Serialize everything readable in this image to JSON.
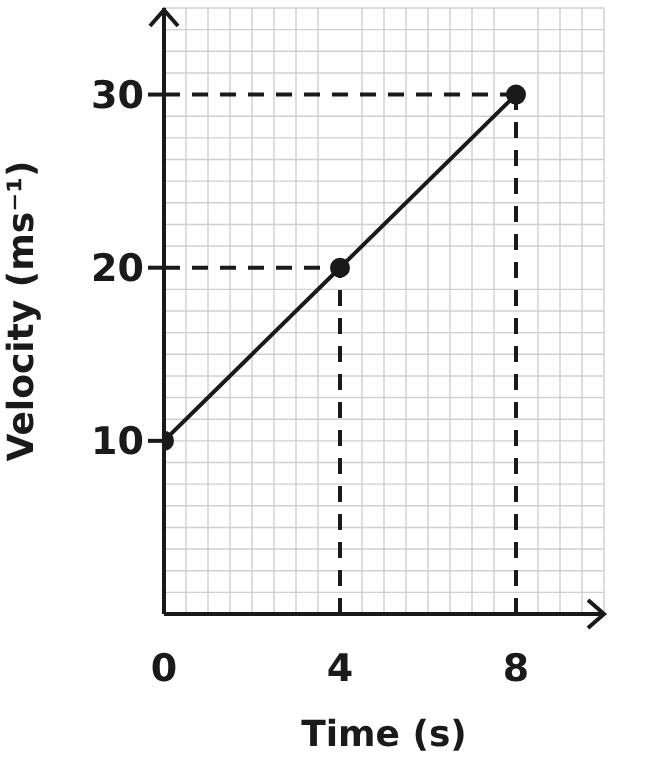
{
  "chart_data": {
    "type": "line",
    "xlabel": "Time (s)",
    "ylabel": "Velocity (ms⁻¹)",
    "x": [
      0,
      4,
      8
    ],
    "series": [
      {
        "color": "#1a1a1a",
        "values": [
          10,
          20,
          30
        ]
      }
    ],
    "xlim": [
      0,
      10
    ],
    "ylim": [
      0,
      35
    ],
    "xticks": [
      0,
      4,
      8
    ],
    "yticks": [
      10,
      20,
      30
    ],
    "grid": true,
    "marker": "circle",
    "line_style": "solid",
    "ref_lines": [
      {
        "axis": "y",
        "value": 30,
        "line_style": "dashed",
        "color": "#1a1a1a"
      },
      {
        "axis": "y",
        "value": 20,
        "line_style": "dashed",
        "color": "#1a1a1a"
      },
      {
        "axis": "x",
        "value": 4,
        "line_style": "dashed",
        "color": "#1a1a1a"
      },
      {
        "axis": "x",
        "value": 8,
        "line_style": "dashed",
        "color": "#1a1a1a"
      }
    ]
  }
}
